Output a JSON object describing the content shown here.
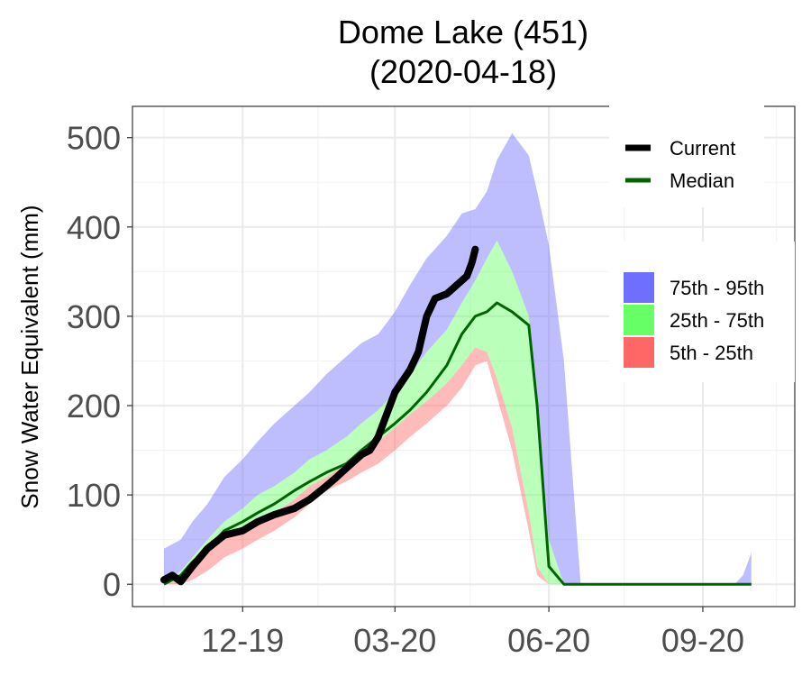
{
  "chart_data": {
    "type": "area",
    "title": "Dome Lake (451)",
    "subtitle": "(2020-04-18)",
    "xlabel": "",
    "ylabel": "Snow Water Equivalent (mm)",
    "x_ticks": [
      "12-19",
      "03-20",
      "06-20",
      "09-20"
    ],
    "y_ticks": [
      0,
      100,
      200,
      300,
      400,
      500
    ],
    "ylim": [
      -25,
      535
    ],
    "grid": true,
    "legend_placement": "right",
    "x": [
      "2019-10-15",
      "2019-10-25",
      "2019-11-01",
      "2019-11-10",
      "2019-11-20",
      "2019-12-01",
      "2019-12-10",
      "2019-12-20",
      "2020-01-01",
      "2020-01-10",
      "2020-01-20",
      "2020-02-01",
      "2020-02-10",
      "2020-02-20",
      "2020-03-01",
      "2020-03-10",
      "2020-03-20",
      "2020-04-01",
      "2020-04-10",
      "2020-04-18",
      "2020-04-25",
      "2020-05-01",
      "2020-05-10",
      "2020-05-20",
      "2020-05-25",
      "2020-06-01",
      "2020-06-10",
      "2020-06-20",
      "2020-06-27",
      "2020-07-01",
      "2020-07-15",
      "2020-08-01",
      "2020-08-15",
      "2020-09-01",
      "2020-09-10",
      "2020-09-20",
      "2020-09-25",
      "2020-09-30"
    ],
    "band_colors": {
      "p75_95": "#6f6fff",
      "p25_75": "#66ff66",
      "p5_25": "#ff6666",
      "current": "#000000",
      "median": "#006400"
    },
    "series": [
      {
        "name": "5th - 25th",
        "role": "p5",
        "values": [
          0,
          0,
          5,
          15,
          30,
          40,
          50,
          60,
          75,
          90,
          105,
          115,
          125,
          135,
          150,
          165,
          180,
          200,
          220,
          245,
          250,
          210,
          150,
          60,
          10,
          0,
          0,
          0,
          0,
          0,
          0,
          0,
          0,
          0,
          0,
          0,
          0,
          0
        ]
      },
      {
        "name": "",
        "role": "p25",
        "values": [
          0,
          5,
          20,
          35,
          50,
          60,
          70,
          80,
          95,
          110,
          120,
          135,
          145,
          160,
          175,
          190,
          205,
          225,
          245,
          265,
          260,
          230,
          175,
          80,
          20,
          0,
          0,
          0,
          0,
          0,
          0,
          0,
          0,
          0,
          0,
          0,
          0,
          0
        ]
      },
      {
        "name": "",
        "role": "p75",
        "values": [
          0,
          15,
          30,
          50,
          70,
          85,
          100,
          110,
          125,
          140,
          150,
          165,
          180,
          195,
          215,
          235,
          260,
          285,
          315,
          340,
          365,
          385,
          350,
          300,
          180,
          50,
          0,
          0,
          0,
          0,
          0,
          0,
          0,
          0,
          0,
          0,
          0,
          0
        ]
      },
      {
        "name": "",
        "role": "p95",
        "values": [
          40,
          50,
          70,
          90,
          120,
          140,
          160,
          180,
          200,
          215,
          235,
          255,
          270,
          280,
          305,
          335,
          365,
          390,
          415,
          420,
          440,
          475,
          505,
          480,
          440,
          380,
          250,
          0,
          0,
          0,
          0,
          0,
          0,
          0,
          0,
          0,
          10,
          35
        ]
      },
      {
        "name": "Median",
        "role": "median",
        "values": [
          0,
          10,
          25,
          40,
          60,
          70,
          80,
          90,
          105,
          115,
          125,
          135,
          150,
          165,
          180,
          195,
          215,
          245,
          280,
          300,
          305,
          315,
          305,
          290,
          200,
          20,
          0,
          0,
          0,
          0,
          0,
          0,
          0,
          0,
          0,
          0,
          0,
          0
        ]
      }
    ],
    "current": {
      "name": "Current",
      "x": [
        "2019-10-15",
        "2019-10-20",
        "2019-10-25",
        "2019-11-01",
        "2019-11-10",
        "2019-11-20",
        "2019-12-01",
        "2019-12-10",
        "2019-12-20",
        "2020-01-01",
        "2020-01-10",
        "2020-01-20",
        "2020-01-25",
        "2020-02-01",
        "2020-02-10",
        "2020-02-15",
        "2020-02-20",
        "2020-03-01",
        "2020-03-10",
        "2020-03-15",
        "2020-03-20",
        "2020-03-25",
        "2020-04-01",
        "2020-04-10",
        "2020-04-13",
        "2020-04-16",
        "2020-04-18"
      ],
      "values": [
        5,
        10,
        3,
        20,
        40,
        55,
        60,
        70,
        78,
        85,
        95,
        110,
        118,
        130,
        145,
        150,
        165,
        215,
        240,
        260,
        300,
        320,
        325,
        340,
        345,
        360,
        375
      ]
    },
    "legend": [
      {
        "label": "Current",
        "type": "line",
        "color": "#000000"
      },
      {
        "label": "Median",
        "type": "line",
        "color": "#006400"
      },
      {
        "label": "75th - 95th",
        "type": "box",
        "color": "#6f6fff"
      },
      {
        "label": "25th - 75th",
        "type": "box",
        "color": "#66ff66"
      },
      {
        "label": "5th - 25th",
        "type": "box",
        "color": "#ff6666"
      }
    ]
  }
}
